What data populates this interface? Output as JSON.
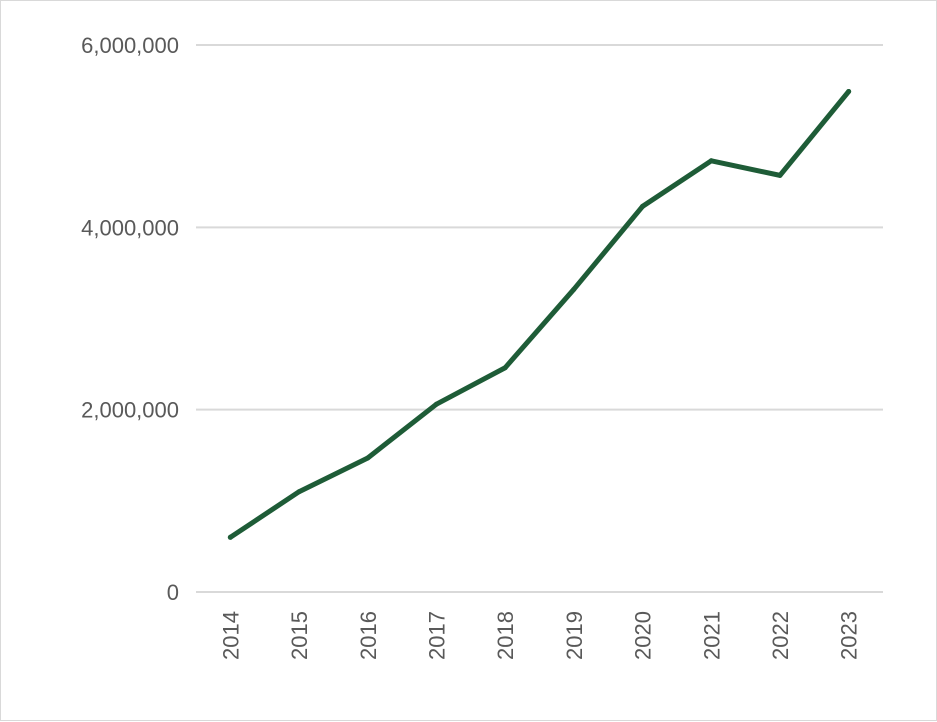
{
  "chart_data": {
    "type": "line",
    "title": "",
    "xlabel": "",
    "ylabel": "",
    "categories": [
      "2014",
      "2015",
      "2016",
      "2017",
      "2018",
      "2019",
      "2020",
      "2021",
      "2022",
      "2023"
    ],
    "series": [
      {
        "values": [
          600000,
          1100000,
          1470000,
          2060000,
          2460000,
          3320000,
          4230000,
          4730000,
          4570000,
          5490000
        ],
        "color": "#1e5c37"
      }
    ],
    "ylim": [
      0,
      6000000
    ],
    "yticks": [
      0,
      2000000,
      4000000,
      6000000
    ],
    "ytick_labels": [
      "0",
      "2,000,000",
      "4,000,000",
      "6,000,000"
    ],
    "grid": "horizontal",
    "legend": "none"
  }
}
